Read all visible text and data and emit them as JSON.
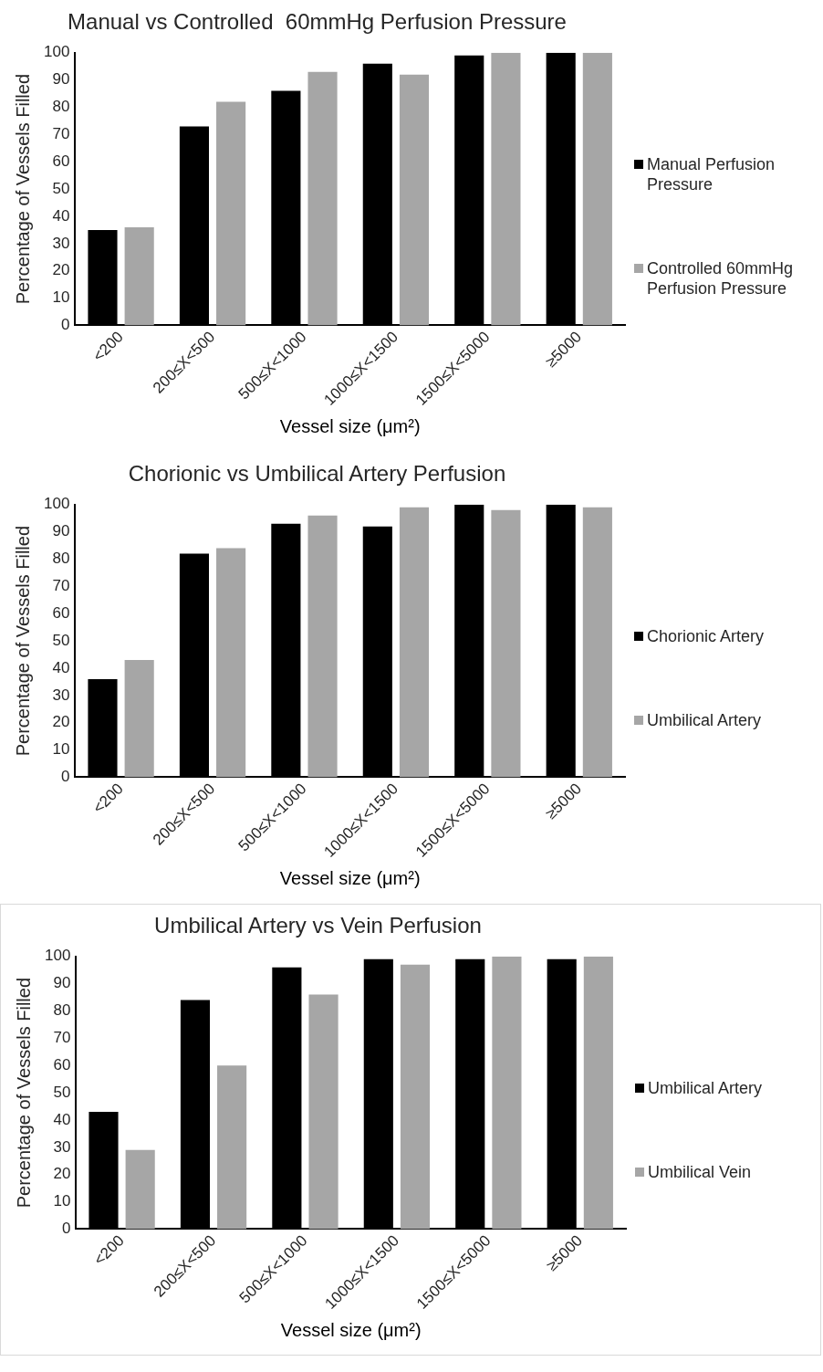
{
  "chart_data": [
    {
      "type": "bar",
      "title": "Manual vs Controlled  60mmHg Perfusion Pressure",
      "xlabel": "Vessel size (μm²)",
      "ylabel": "Percentage of Vessels Filled",
      "categories": [
        "<200",
        "200≤X<500",
        "500≤X<1000",
        "1000≤X<1500",
        "1500≤X<5000",
        "≥5000"
      ],
      "series": [
        {
          "name": "Manual Perfusion Pressure",
          "color": "#000000",
          "values": [
            35,
            73,
            86,
            96,
            99,
            100
          ]
        },
        {
          "name": "Controlled 60mmHg Perfusion Pressure",
          "color": "#a6a6a6",
          "values": [
            36,
            82,
            93,
            92,
            100,
            100
          ]
        }
      ],
      "ylim": [
        0,
        100
      ],
      "yticks": [
        0,
        10,
        20,
        30,
        40,
        50,
        60,
        70,
        80,
        90,
        100
      ],
      "grid": false,
      "legend": "right"
    },
    {
      "type": "bar",
      "title": "Chorionic vs Umbilical Artery Perfusion",
      "xlabel": "Vessel size (μm²)",
      "ylabel": "Percentage of Vessels Filled",
      "categories": [
        "<200",
        "200≤X<500",
        "500≤X<1000",
        "1000≤X<1500",
        "1500≤X<5000",
        "≥5000"
      ],
      "series": [
        {
          "name": "Chorionic Artery",
          "color": "#000000",
          "values": [
            36,
            82,
            93,
            92,
            100,
            100
          ]
        },
        {
          "name": "Umbilical Artery",
          "color": "#a6a6a6",
          "values": [
            43,
            84,
            96,
            99,
            98,
            99
          ]
        }
      ],
      "ylim": [
        0,
        100
      ],
      "yticks": [
        0,
        10,
        20,
        30,
        40,
        50,
        60,
        70,
        80,
        90,
        100
      ],
      "grid": false,
      "legend": "right"
    },
    {
      "type": "bar",
      "title": "Umbilical Artery vs Vein Perfusion",
      "xlabel": "Vessel size (μm²)",
      "ylabel": "Percentage of Vessels Filled",
      "categories": [
        "<200",
        "200≤X<500",
        "500≤X<1000",
        "1000≤X<1500",
        "1500≤X<5000",
        "≥5000"
      ],
      "series": [
        {
          "name": "Umbilical Artery",
          "color": "#000000",
          "values": [
            43,
            84,
            96,
            99,
            99,
            99
          ]
        },
        {
          "name": "Umbilical Vein",
          "color": "#a6a6a6",
          "values": [
            29,
            60,
            86,
            97,
            100,
            100
          ]
        }
      ],
      "ylim": [
        0,
        100
      ],
      "yticks": [
        0,
        10,
        20,
        30,
        40,
        50,
        60,
        70,
        80,
        90,
        100
      ],
      "grid": false,
      "legend": "right"
    }
  ]
}
